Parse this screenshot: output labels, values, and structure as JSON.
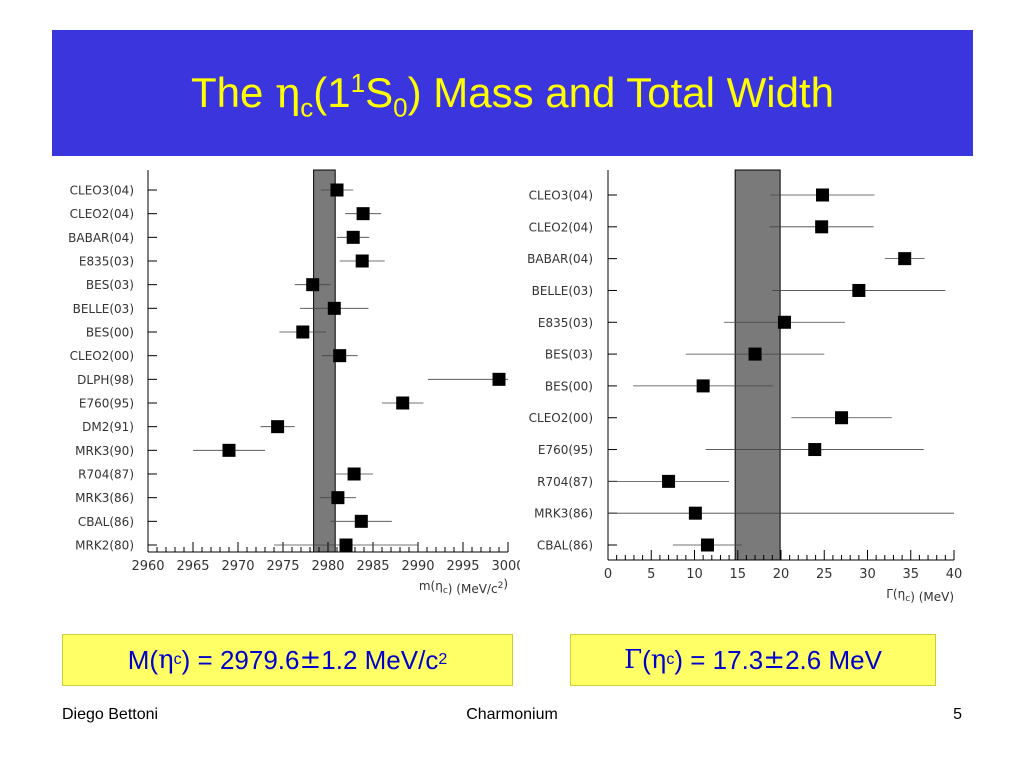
{
  "slide": {
    "title": {
      "prefix": "The ",
      "eta": "η",
      "eta_sub": "c",
      "paren_open": "(1",
      "sup1": "1",
      "letter": "S",
      "sub0": "0",
      "suffix": ") Mass and Total Width"
    },
    "mass_result": {
      "lead": "M(",
      "eta": "η",
      "sub": "c",
      "mid": ") = 2979.6 ",
      "pm": "±",
      "tail": " 1.2 MeV/c",
      "sup": "2"
    },
    "width_result": {
      "gamma": "Γ",
      "open": "(",
      "eta": "η",
      "sub": "c",
      "mid": ") = 17.3 ",
      "pm": "±",
      "tail": " 2.6 MeV"
    },
    "footer": {
      "author": "Diego Bettoni",
      "center": "Charmonium",
      "page": "5"
    },
    "colors": {
      "banner": "#3b35de",
      "title": "#ffff00",
      "result_box": "#ffff66",
      "result_text": "#0000cc",
      "band_fill": "#7a7a7a"
    }
  },
  "chart_data": [
    {
      "type": "scatter",
      "name": "mass",
      "categories": [
        "CLEO3(04)",
        "CLEO2(04)",
        "BABAR(04)",
        "E835(03)",
        "BES(03)",
        "BELLE(03)",
        "BES(00)",
        "CLEO2(00)",
        "DLPH(98)",
        "E760(95)",
        "DM2(91)",
        "MRK3(90)",
        "R704(87)",
        "MRK3(86)",
        "CBAL(86)",
        "MRK2(80)"
      ],
      "values": [
        2981.0,
        2983.9,
        2982.8,
        2983.8,
        2978.3,
        2980.7,
        2977.2,
        2981.3,
        2999.0,
        2988.3,
        2974.4,
        2969.0,
        2982.9,
        2981.1,
        2983.7,
        2982.0
      ],
      "errors": [
        1.8,
        2.0,
        1.8,
        2.5,
        2.0,
        3.8,
        2.6,
        2.0,
        7.9,
        2.3,
        1.9,
        4.0,
        2.1,
        2.0,
        3.4,
        8.0
      ],
      "band": [
        2978.4,
        2980.8
      ],
      "xlim": [
        2960,
        3000
      ],
      "xticks": [
        "2960",
        "2965",
        "2970",
        "2975",
        "2980",
        "2985",
        "2990",
        "2995",
        "3000"
      ],
      "xlabel_main": "m(",
      "xlabel_eta": "η",
      "xlabel_sub": "c",
      "xlabel_close": ")",
      "xlabel_units": "(MeV/c",
      "xlabel_units_sup": "2",
      "xlabel_units_close": ")"
    },
    {
      "type": "scatter",
      "name": "width",
      "categories": [
        "CLEO3(04)",
        "CLEO2(04)",
        "BABAR(04)",
        "BELLE(03)",
        "E835(03)",
        "BES(03)",
        "BES(00)",
        "CLEO2(00)",
        "E760(95)",
        "R704(87)",
        "MRK3(86)",
        "CBAL(86)"
      ],
      "values": [
        24.8,
        24.7,
        34.3,
        29.0,
        20.4,
        17.0,
        11.0,
        27.0,
        23.9,
        7.0,
        10.1,
        11.5
      ],
      "errors": [
        6.0,
        6.0,
        2.3,
        10.0,
        7.0,
        8.0,
        8.1,
        5.8,
        12.6,
        7.0,
        33.0,
        4.0
      ],
      "band": [
        14.7,
        19.9
      ],
      "xlim": [
        0,
        40
      ],
      "xticks": [
        "0",
        "5",
        "10",
        "15",
        "20",
        "25",
        "30",
        "35",
        "40"
      ],
      "xlabel_main": "Γ(",
      "xlabel_eta": "η",
      "xlabel_sub": "c",
      "xlabel_close": ")",
      "xlabel_units": "(MeV)"
    }
  ]
}
